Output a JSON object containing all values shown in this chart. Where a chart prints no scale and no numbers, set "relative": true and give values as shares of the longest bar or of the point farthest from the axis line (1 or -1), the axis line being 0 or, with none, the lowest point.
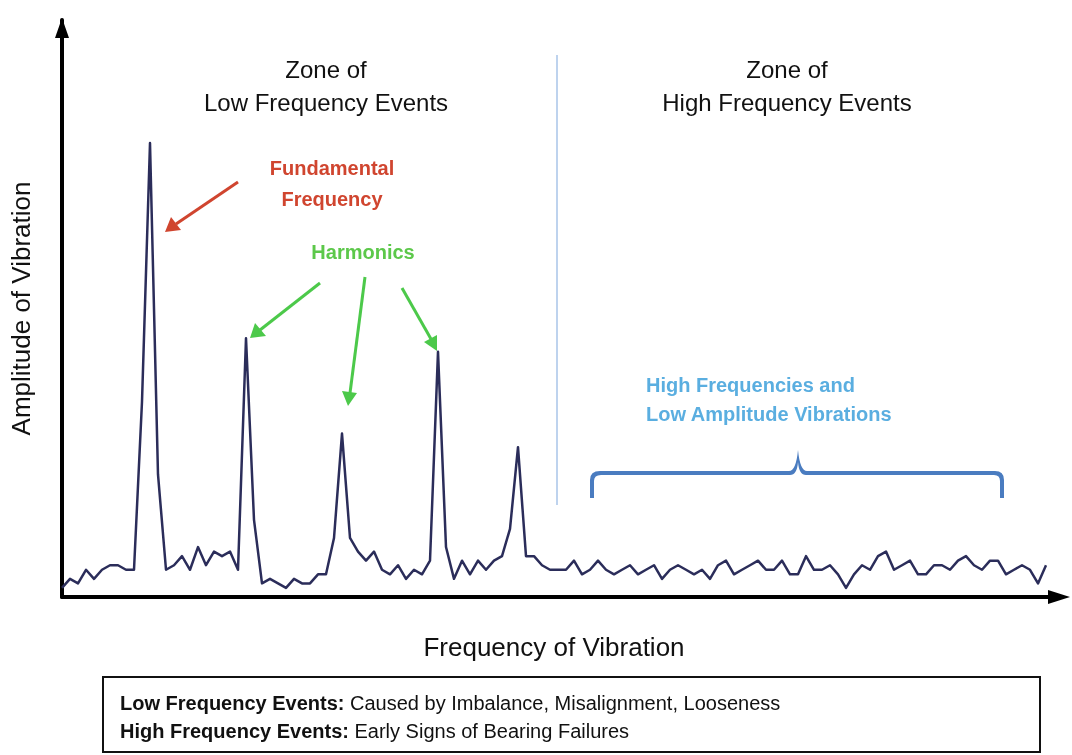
{
  "chart_data": {
    "type": "line",
    "relative": true,
    "xlabel": "Frequency of Vibration",
    "ylabel": "Amplitude of Vibration",
    "categories": [
      null,
      null,
      null,
      null,
      null,
      null,
      null,
      null,
      null,
      null,
      null,
      null,
      null,
      null,
      null,
      null,
      null,
      null,
      null,
      null,
      null,
      null,
      null,
      null,
      null,
      null,
      null,
      null,
      null,
      null,
      null,
      null,
      null,
      null,
      null,
      null,
      null,
      null,
      null,
      null,
      null,
      null,
      null,
      null,
      null,
      null,
      null,
      null,
      null,
      null,
      null,
      null,
      null,
      null,
      null,
      null,
      null,
      null,
      null,
      null,
      null,
      null,
      null,
      null,
      null,
      null,
      null,
      null,
      null,
      null,
      null,
      null,
      null,
      null,
      null,
      null,
      null,
      null,
      null,
      null,
      null,
      null,
      null,
      null,
      null,
      null,
      null,
      null,
      null,
      null,
      null,
      null,
      null,
      null,
      null,
      null,
      null,
      null,
      null,
      null,
      null,
      null,
      null,
      null,
      null,
      null,
      null,
      null,
      null,
      null,
      null,
      null,
      null,
      null,
      null,
      null,
      null,
      null,
      null,
      null,
      null,
      null,
      null,
      null
    ],
    "series": [
      {
        "color": "#2b2d5a",
        "values": [
          0.02,
          0.04,
          0.03,
          0.06,
          0.04,
          0.06,
          0.07,
          0.07,
          0.06,
          0.06,
          0.43,
          1,
          0.27,
          0.06,
          0.07,
          0.09,
          0.06,
          0.11,
          0.07,
          0.1,
          0.09,
          0.1,
          0.06,
          0.57,
          0.17,
          0.03,
          0.04,
          0.03,
          0.02,
          0.04,
          0.03,
          0.03,
          0.05,
          0.05,
          0.13,
          0.36,
          0.13,
          0.1,
          0.08,
          0.1,
          0.06,
          0.05,
          0.07,
          0.04,
          0.06,
          0.05,
          0.08,
          0.54,
          0.11,
          0.04,
          0.08,
          0.05,
          0.08,
          0.06,
          0.08,
          0.09,
          0.15,
          0.33,
          0.09,
          0.09,
          0.07,
          0.06,
          0.06,
          0.06,
          0.08,
          0.05,
          0.06,
          0.08,
          0.06,
          0.05,
          0.06,
          0.07,
          0.05,
          0.06,
          0.07,
          0.04,
          0.06,
          0.07,
          0.06,
          0.05,
          0.06,
          0.04,
          0.07,
          0.08,
          0.05,
          0.06,
          0.07,
          0.08,
          0.06,
          0.06,
          0.08,
          0.05,
          0.05,
          0.09,
          0.06,
          0.06,
          0.07,
          0.05,
          0.02,
          0.05,
          0.07,
          0.06,
          0.09,
          0.1,
          0.06,
          0.07,
          0.08,
          0.05,
          0.05,
          0.07,
          0.07,
          0.06,
          0.08,
          0.09,
          0.07,
          0.06,
          0.08,
          0.08,
          0.05,
          0.06,
          0.07,
          0.06,
          0.03,
          0.07
        ]
      }
    ],
    "annotations": [
      "Zone of\nLow Frequency Events",
      "Zone of\nHigh Frequency Events",
      "Fundamental\nFrequency",
      "Harmonics",
      "High Frequencies and\nLow Amplitude Vibrations",
      "Low Frequency Events: Caused by Imbalance, Misalignment, Looseness",
      "High Frequency Events: Early Signs of Bearing Failures"
    ]
  }
}
